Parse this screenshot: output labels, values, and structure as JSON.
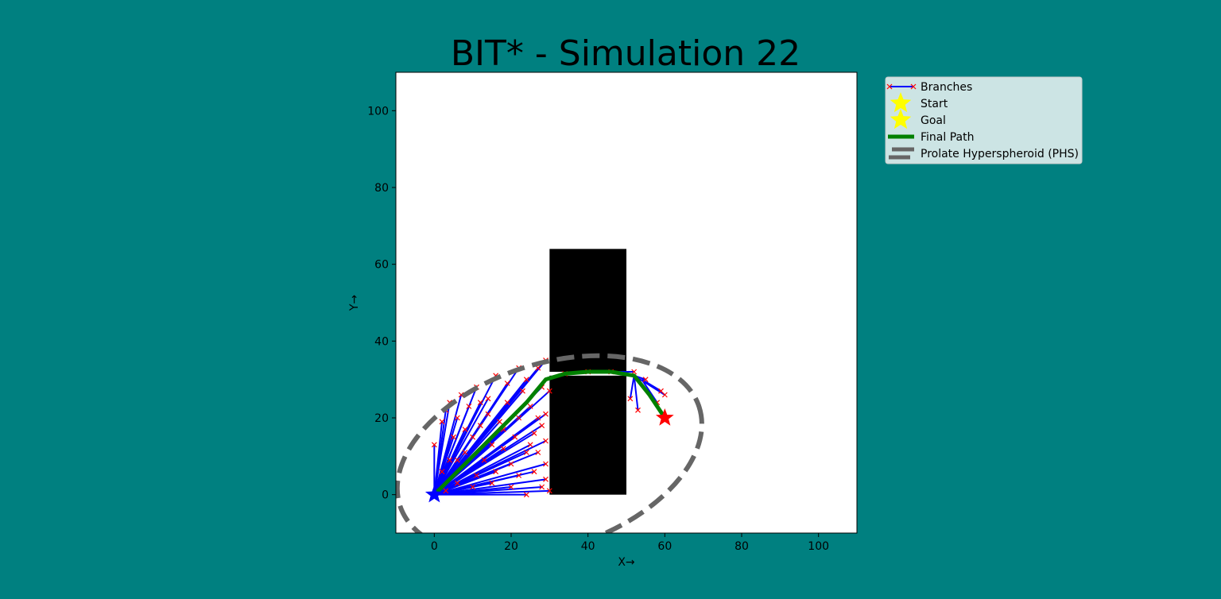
{
  "chart_data": {
    "type": "scatter",
    "title": "BIT* - Simulation 22",
    "xlabel": "X→",
    "ylabel": "Y→",
    "xlim": [
      -10,
      110
    ],
    "ylim": [
      -10,
      110
    ],
    "xticks": [
      0,
      20,
      40,
      60,
      80,
      100
    ],
    "yticks": [
      0,
      20,
      40,
      60,
      80,
      100
    ],
    "grid": false,
    "legend_position": "outside-top-right",
    "colors": {
      "background": "#008080",
      "axes_face": "#ffffff",
      "branch": "#0000ff",
      "node_marker": "#ff0000",
      "final_path": "#008000",
      "phs": "#666666",
      "obstacle": "#000000",
      "start_marker": "#0000ff",
      "goal_marker": "#ff0000",
      "legend_face": "#cce4e4"
    },
    "obstacles": [
      {
        "x": 30,
        "y": 0,
        "width": 20,
        "height": 31
      },
      {
        "x": 30,
        "y": 32,
        "width": 20,
        "height": 32
      }
    ],
    "start": {
      "x": 0,
      "y": 0
    },
    "goal": {
      "x": 60,
      "y": 20
    },
    "final_path": {
      "x": [
        0,
        8,
        16,
        24,
        29,
        34,
        40,
        46,
        52,
        56,
        60
      ],
      "y": [
        0,
        8,
        16,
        24,
        30,
        31.5,
        32,
        32,
        31,
        26,
        20
      ]
    },
    "ellipse": {
      "center": [
        30,
        10
      ],
      "semi_major": 41,
      "semi_minor": 24,
      "angle_deg": 18.4
    },
    "legend": [
      {
        "label": "Branches",
        "kind": "branch"
      },
      {
        "label": "Start",
        "kind": "star"
      },
      {
        "label": "Goal",
        "kind": "star"
      },
      {
        "label": "Final Path",
        "kind": "path"
      },
      {
        "label": "Prolate Hyperspheroid (PHS)",
        "kind": "phs"
      }
    ],
    "branch_edges": [
      [
        [
          0,
          0
        ],
        [
          2,
          19
        ]
      ],
      [
        [
          0,
          0
        ],
        [
          0,
          13
        ]
      ],
      [
        [
          0,
          0
        ],
        [
          3,
          22
        ]
      ],
      [
        [
          0,
          0
        ],
        [
          5,
          15
        ]
      ],
      [
        [
          0,
          0
        ],
        [
          7,
          26
        ]
      ],
      [
        [
          0,
          0
        ],
        [
          9,
          23
        ]
      ],
      [
        [
          0,
          0
        ],
        [
          11,
          28
        ]
      ],
      [
        [
          0,
          0
        ],
        [
          14,
          25
        ]
      ],
      [
        [
          0,
          0
        ],
        [
          16,
          31
        ]
      ],
      [
        [
          0,
          0
        ],
        [
          19,
          29
        ]
      ],
      [
        [
          0,
          0
        ],
        [
          22,
          33
        ]
      ],
      [
        [
          0,
          0
        ],
        [
          24,
          30
        ]
      ],
      [
        [
          0,
          0
        ],
        [
          27,
          33
        ]
      ],
      [
        [
          0,
          0
        ],
        [
          29,
          35
        ]
      ],
      [
        [
          0,
          0
        ],
        [
          28,
          28
        ]
      ],
      [
        [
          0,
          0
        ],
        [
          25,
          23
        ]
      ],
      [
        [
          0,
          0
        ],
        [
          29,
          21
        ]
      ],
      [
        [
          0,
          0
        ],
        [
          28,
          18
        ]
      ],
      [
        [
          0,
          0
        ],
        [
          26,
          16
        ]
      ],
      [
        [
          0,
          0
        ],
        [
          29,
          14
        ]
      ],
      [
        [
          0,
          0
        ],
        [
          27,
          11
        ]
      ],
      [
        [
          0,
          0
        ],
        [
          29,
          8
        ]
      ],
      [
        [
          0,
          0
        ],
        [
          26,
          6
        ]
      ],
      [
        [
          0,
          0
        ],
        [
          29,
          4
        ]
      ],
      [
        [
          0,
          0
        ],
        [
          28,
          2
        ]
      ],
      [
        [
          0,
          0
        ],
        [
          30,
          1
        ]
      ],
      [
        [
          0,
          0
        ],
        [
          24,
          0
        ]
      ],
      [
        [
          0,
          0
        ],
        [
          20,
          2
        ]
      ],
      [
        [
          0,
          0
        ],
        [
          15,
          3
        ]
      ],
      [
        [
          0,
          0
        ],
        [
          10,
          2
        ]
      ],
      [
        [
          0,
          0
        ],
        [
          6,
          3
        ]
      ],
      [
        [
          0,
          0
        ],
        [
          3,
          1
        ]
      ],
      [
        [
          0,
          0
        ],
        [
          13,
          9
        ]
      ],
      [
        [
          0,
          0
        ],
        [
          18,
          12
        ]
      ],
      [
        [
          0,
          0
        ],
        [
          21,
          15
        ]
      ],
      [
        [
          0,
          0
        ],
        [
          17,
          19
        ]
      ],
      [
        [
          0,
          0
        ],
        [
          12,
          18
        ]
      ],
      [
        [
          0,
          0
        ],
        [
          8,
          11
        ]
      ],
      [
        [
          0,
          0
        ],
        [
          4,
          9
        ]
      ],
      [
        [
          0,
          0
        ],
        [
          10,
          15
        ]
      ],
      [
        [
          0,
          0
        ],
        [
          6,
          20
        ]
      ],
      [
        [
          0,
          0
        ],
        [
          14,
          21
        ]
      ],
      [
        [
          0,
          0
        ],
        [
          19,
          24
        ]
      ],
      [
        [
          0,
          0
        ],
        [
          23,
          27
        ]
      ],
      [
        [
          0,
          0
        ],
        [
          15,
          13
        ]
      ],
      [
        [
          0,
          0
        ],
        [
          20,
          8
        ]
      ],
      [
        [
          0,
          0
        ],
        [
          24,
          11
        ]
      ],
      [
        [
          0,
          0
        ],
        [
          22,
          5
        ]
      ],
      [
        [
          0,
          0
        ],
        [
          16,
          6
        ]
      ],
      [
        [
          0,
          0
        ],
        [
          11,
          5
        ]
      ],
      [
        [
          0,
          0
        ],
        [
          27,
          20
        ]
      ],
      [
        [
          0,
          0
        ],
        [
          25,
          13
        ]
      ],
      [
        [
          0,
          0
        ],
        [
          18,
          17
        ]
      ],
      [
        [
          0,
          0
        ],
        [
          12,
          24
        ]
      ],
      [
        [
          0,
          0
        ],
        [
          4,
          24
        ]
      ],
      [
        [
          0,
          0
        ],
        [
          8,
          17
        ]
      ],
      [
        [
          0,
          0
        ],
        [
          2,
          6
        ]
      ],
      [
        [
          0,
          0
        ],
        [
          6,
          9
        ]
      ],
      [
        [
          0,
          0
        ],
        [
          30,
          27
        ]
      ],
      [
        [
          0,
          0
        ],
        [
          22,
          20
        ]
      ],
      [
        [
          29,
          30
        ],
        [
          34,
          31.5
        ]
      ],
      [
        [
          34,
          31.5
        ],
        [
          40,
          32
        ]
      ],
      [
        [
          40,
          32
        ],
        [
          46,
          32
        ]
      ],
      [
        [
          46,
          32
        ],
        [
          52,
          32
        ]
      ],
      [
        [
          52,
          31
        ],
        [
          55,
          30
        ]
      ],
      [
        [
          52,
          31
        ],
        [
          51,
          25
        ]
      ],
      [
        [
          52,
          31
        ],
        [
          53,
          22
        ]
      ],
      [
        [
          54,
          30
        ],
        [
          59,
          27
        ]
      ],
      [
        [
          54,
          30
        ],
        [
          58,
          24
        ]
      ],
      [
        [
          52,
          31
        ],
        [
          60,
          26
        ]
      ]
    ]
  }
}
